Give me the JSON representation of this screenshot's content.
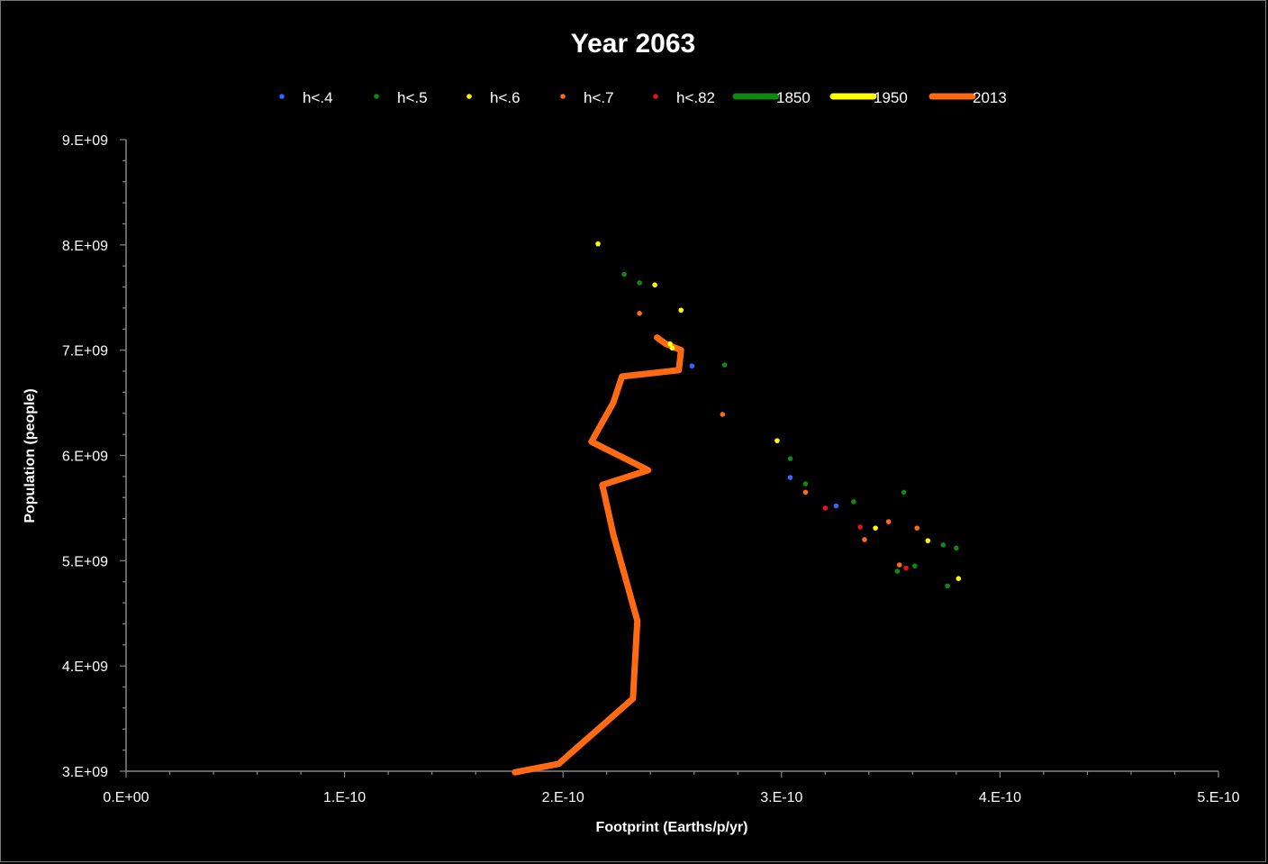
{
  "chart_data": {
    "type": "scatter",
    "title": "Year 2063",
    "xlabel": "Footprint (Earths/p/yr)",
    "ylabel": "Population (people)",
    "xlim": [
      0,
      5e-10
    ],
    "ylim": [
      3000000000,
      9000000000
    ],
    "x_ticks": [
      "0.E+00",
      "1.E-10",
      "2.E-10",
      "3.E-10",
      "4.E-10",
      "5.E-10"
    ],
    "y_ticks": [
      "3.E+09",
      "4.E+09",
      "5.E+09",
      "6.E+09",
      "7.E+09",
      "8.E+09",
      "9.E+09"
    ],
    "grid": false,
    "legend_position": "top",
    "series": [
      {
        "name": "h<.4",
        "kind": "points",
        "color": "#3366ff",
        "points": [
          [
            2.59e-10,
            6850000000.0
          ],
          [
            3.04e-10,
            5790000000.0
          ],
          [
            3.25e-10,
            5520000000.0
          ]
        ]
      },
      {
        "name": "h<.5",
        "kind": "points",
        "color": "#118811",
        "points": [
          [
            2.28e-10,
            7720000000.0
          ],
          [
            2.35e-10,
            7640000000.0
          ],
          [
            2.74e-10,
            6860000000.0
          ],
          [
            3.04e-10,
            5970000000.0
          ],
          [
            3.11e-10,
            5730000000.0
          ],
          [
            3.33e-10,
            5560000000.0
          ],
          [
            3.56e-10,
            5650000000.0
          ],
          [
            3.74e-10,
            5150000000.0
          ],
          [
            3.8e-10,
            5120000000.0
          ],
          [
            3.61e-10,
            4950000000.0
          ],
          [
            3.53e-10,
            4900000000.0
          ],
          [
            3.76e-10,
            4760000000.0
          ]
        ]
      },
      {
        "name": "h<.6",
        "kind": "points",
        "color": "#ffff00",
        "points": [
          [
            2.16e-10,
            8010000000.0
          ],
          [
            2.42e-10,
            7620000000.0
          ],
          [
            2.54e-10,
            7380000000.0
          ],
          [
            2.49e-10,
            7060000000.0
          ],
          [
            2.5e-10,
            7020000000.0
          ],
          [
            2.98e-10,
            6140000000.0
          ],
          [
            3.43e-10,
            5310000000.0
          ],
          [
            3.67e-10,
            5190000000.0
          ],
          [
            3.81e-10,
            4830000000.0
          ]
        ]
      },
      {
        "name": "h<.7",
        "kind": "points",
        "color": "#ff6a13",
        "points": [
          [
            2.35e-10,
            7350000000.0
          ],
          [
            2.73e-10,
            6390000000.0
          ],
          [
            3.11e-10,
            5650000000.0
          ],
          [
            3.49e-10,
            5370000000.0
          ],
          [
            3.62e-10,
            5310000000.0
          ],
          [
            3.38e-10,
            5200000000.0
          ],
          [
            3.54e-10,
            4960000000.0
          ]
        ]
      },
      {
        "name": "h<.82",
        "kind": "points",
        "color": "#ee1111",
        "points": [
          [
            3.2e-10,
            5500000000.0
          ],
          [
            3.36e-10,
            5320000000.0
          ],
          [
            3.57e-10,
            4930000000.0
          ]
        ]
      },
      {
        "name": "1850",
        "kind": "line",
        "color": "#118811",
        "points": []
      },
      {
        "name": "1950",
        "kind": "line",
        "color": "#ffff00",
        "points": []
      },
      {
        "name": "2013",
        "kind": "line",
        "color": "#ff6a13",
        "points": [
          [
            1.78e-10,
            2990000000.0
          ],
          [
            1.98e-10,
            3070000000.0
          ],
          [
            2.32e-10,
            3690000000.0
          ],
          [
            2.34e-10,
            4430000000.0
          ],
          [
            2.23e-10,
            5250000000.0
          ],
          [
            2.18e-10,
            5720000000.0
          ],
          [
            2.39e-10,
            5860000000.0
          ],
          [
            2.13e-10,
            6130000000.0
          ],
          [
            2.23e-10,
            6500000000.0
          ],
          [
            2.27e-10,
            6750000000.0
          ],
          [
            2.53e-10,
            6810000000.0
          ],
          [
            2.54e-10,
            7000000000.0
          ],
          [
            2.47e-10,
            7060000000.0
          ],
          [
            2.43e-10,
            7120000000.0
          ]
        ]
      }
    ]
  }
}
